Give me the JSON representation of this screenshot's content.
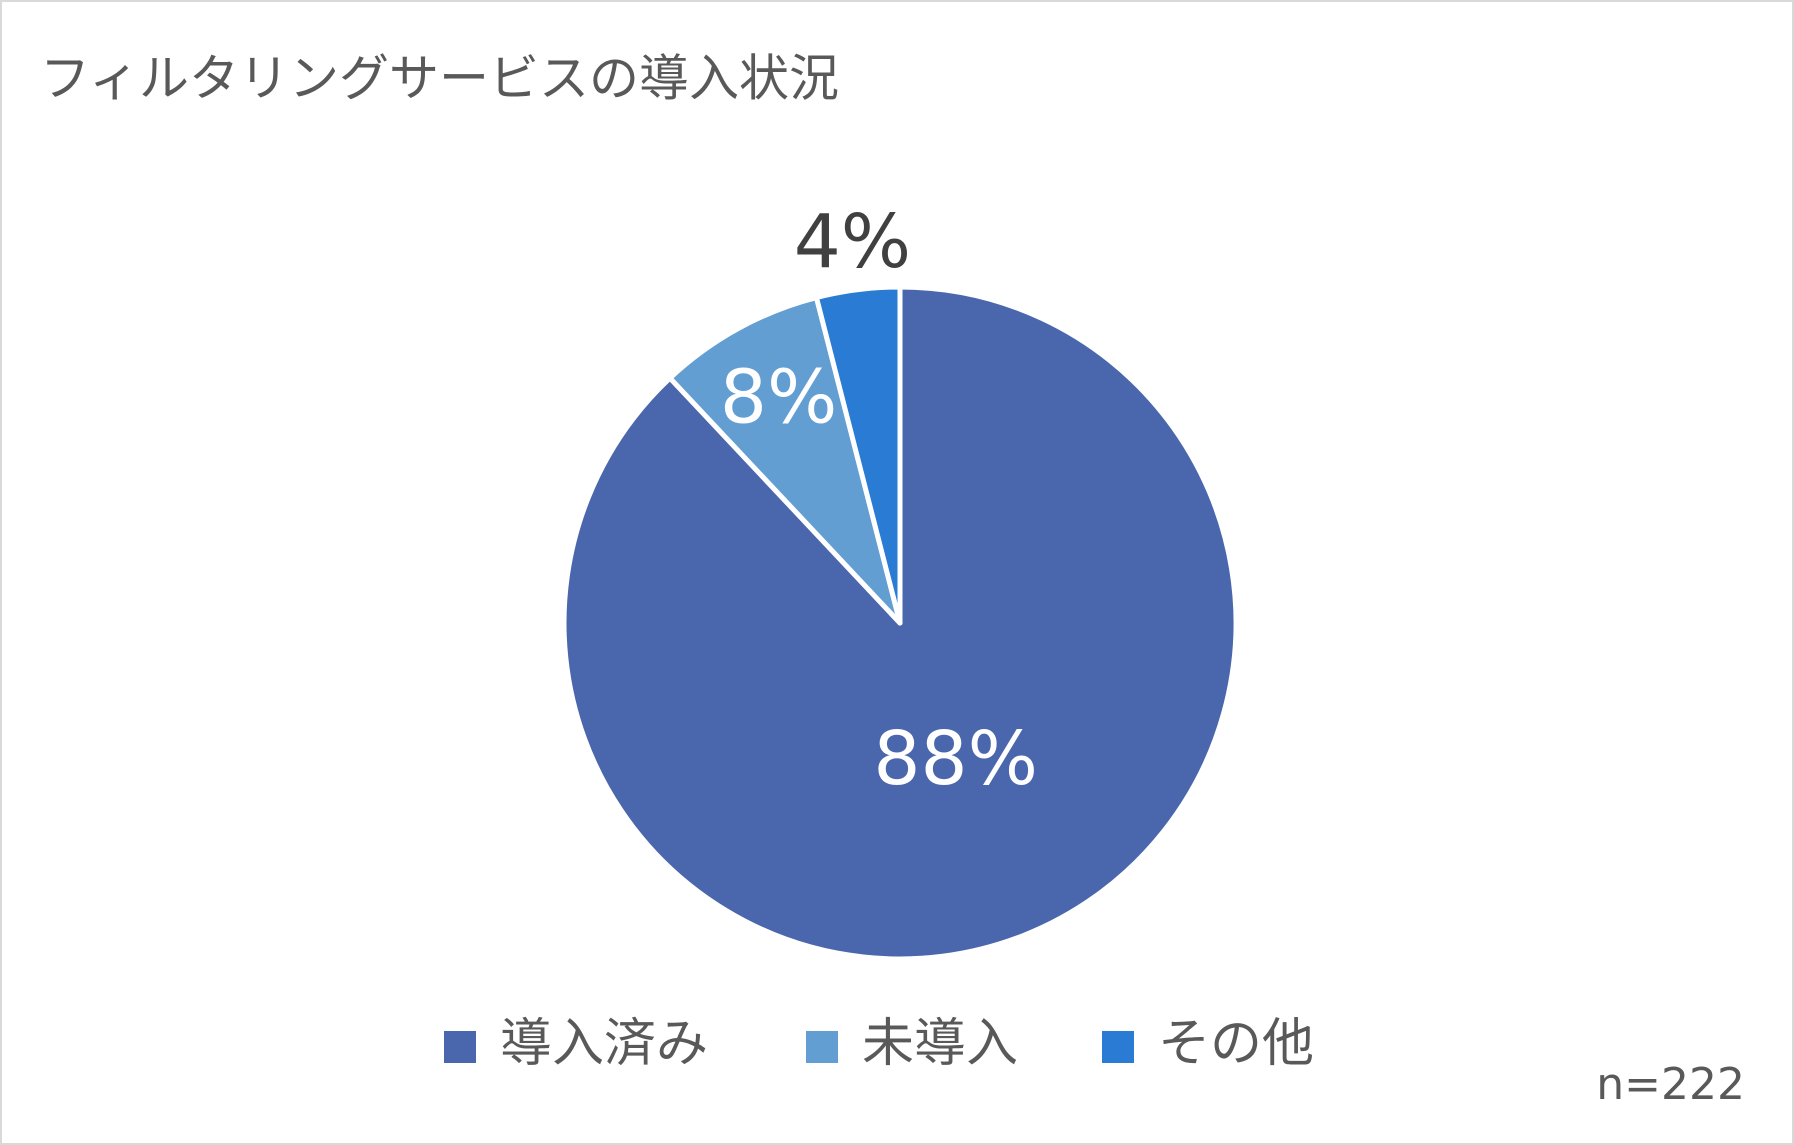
{
  "chart_data": {
    "type": "pie",
    "title": "フィルタリングサービスの導入状況",
    "categories": [
      "導入済み",
      "未導入",
      "その他"
    ],
    "values": [
      88,
      8,
      4
    ],
    "value_labels": [
      "88%",
      "8%",
      "4%"
    ],
    "colors": [
      "#4a67ad",
      "#639ed2",
      "#2a7bd3"
    ],
    "annotation": "n=222",
    "legend": "bottom"
  }
}
